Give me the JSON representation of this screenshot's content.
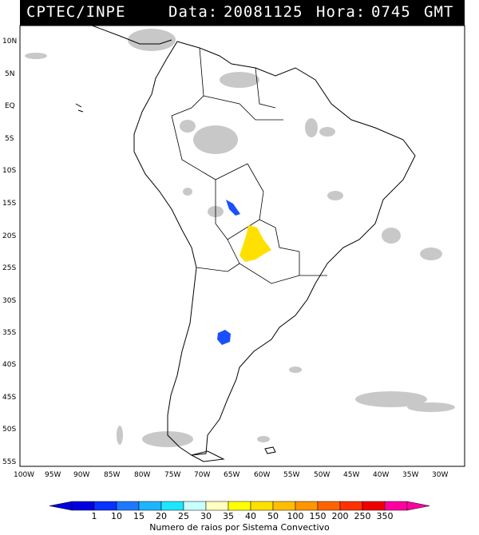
{
  "header": {
    "source": "CPTEC/INPE",
    "date_label": "Data:",
    "date": "20081125",
    "time_label": "Hora:",
    "time": "0745",
    "tz": "GMT"
  },
  "map": {
    "lat_labels": [
      "10N",
      "5N",
      "EQ",
      "5S",
      "10S",
      "15S",
      "20S",
      "25S",
      "30S",
      "35S",
      "40S",
      "45S",
      "50S",
      "55S"
    ],
    "lon_labels": [
      "100W",
      "95W",
      "90W",
      "85W",
      "80W",
      "75W",
      "70W",
      "65W",
      "60W",
      "55W",
      "50W",
      "45W",
      "40W",
      "35W",
      "30W"
    ],
    "cloud_color": "#c8c8c8",
    "land_line_color": "#000000",
    "convective_systems": [
      {
        "id": "bolivia-cell",
        "lat": -16,
        "lon": -64.5,
        "class": "10-15",
        "color": "#1a4fff"
      },
      {
        "id": "paraguay-cell",
        "lat": -22,
        "lon": -59.5,
        "class": "40-50",
        "color": "#ffe000"
      },
      {
        "id": "argentina-cell",
        "lat": -36,
        "lon": -65.7,
        "class": "10-15",
        "color": "#1a4fff"
      }
    ]
  },
  "colorbar": {
    "ticks": [
      "1",
      "10",
      "15",
      "20",
      "25",
      "30",
      "35",
      "40",
      "50",
      "100",
      "150",
      "200",
      "250",
      "350"
    ],
    "colors": [
      "#0000e0",
      "#0a32ff",
      "#1e78ff",
      "#1eb4ff",
      "#1ee6ff",
      "#c8ffff",
      "#ffffc0",
      "#ffff00",
      "#ffe000",
      "#ffbe00",
      "#ff9600",
      "#ff6400",
      "#ff3200",
      "#f00000",
      "#ff00a0"
    ],
    "label": "Numero de raios por Sistema Convectivo"
  }
}
